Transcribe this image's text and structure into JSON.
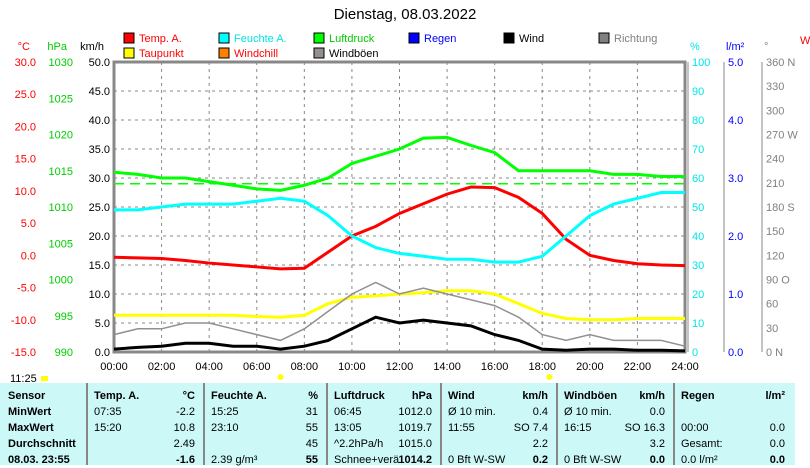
{
  "title": "Dienstag, 08.03.2022",
  "current_time": "11:25",
  "chart_data": {
    "type": "line",
    "title": "Dienstag, 08.03.2022",
    "legend": [
      {
        "label": "Temp. A.",
        "color": "#ff0000",
        "text_color": "#ff0000"
      },
      {
        "label": "Feuchte A.",
        "color": "#00ffff",
        "text_color": "#00e5e5"
      },
      {
        "label": "Luftdruck",
        "color": "#00ff00",
        "text_color": "#00cc00"
      },
      {
        "label": "Regen",
        "color": "#0000ff",
        "text_color": "#0000ff"
      },
      {
        "label": "Wind",
        "color": "#000000",
        "text_color": "#000000"
      },
      {
        "label": "Richtung",
        "color": "#808080",
        "text_color": "#808080"
      },
      {
        "label": "Taupunkt",
        "color": "#ffff00",
        "text_color": "#ff0000"
      },
      {
        "label": "Windchill",
        "color": "#ff8000",
        "text_color": "#ff0000"
      },
      {
        "label": "Windböen",
        "color": "#948e94",
        "text_color": "#000000"
      }
    ],
    "x_ticks": [
      "00:00",
      "02:00",
      "04:00",
      "06:00",
      "08:00",
      "10:00",
      "12:00",
      "14:00",
      "16:00",
      "18:00",
      "20:00",
      "22:00",
      "24:00"
    ],
    "x_hours": [
      0,
      1,
      2,
      3,
      4,
      5,
      6,
      7,
      8,
      9,
      10,
      11,
      12,
      13,
      14,
      15,
      16,
      17,
      18,
      19,
      20,
      21,
      22,
      23,
      24
    ],
    "axes": {
      "temp": {
        "unit": "°C",
        "range": [
          -15,
          30
        ],
        "ticks": [
          "30.0",
          "25.0",
          "20.0",
          "15.0",
          "10.0",
          "5.0",
          "0.0",
          "-5.0",
          "-10.0",
          "-15.0"
        ]
      },
      "pressure": {
        "unit": "hPa",
        "range": [
          990,
          1030
        ],
        "ticks": [
          "1030",
          "1025",
          "1020",
          "1015",
          "1010",
          "1005",
          "1000",
          "995",
          "990"
        ]
      },
      "wind": {
        "unit": "km/h",
        "range": [
          0,
          50
        ],
        "ticks": [
          "50.0",
          "45.0",
          "40.0",
          "35.0",
          "30.0",
          "25.0",
          "20.0",
          "15.0",
          "10.0",
          "5.0",
          "0.0"
        ]
      },
      "humidity": {
        "unit": "%",
        "range": [
          0,
          100
        ],
        "ticks": [
          "100",
          "90",
          "80",
          "70",
          "60",
          "50",
          "40",
          "30",
          "20",
          "10",
          "0"
        ]
      },
      "rain": {
        "unit": "l/m²",
        "range": [
          0,
          5
        ],
        "ticks": [
          "5.0",
          "4.0",
          "3.0",
          "2.0",
          "1.0",
          "0.0"
        ]
      },
      "direction": {
        "unit": "°",
        "range": [
          0,
          360
        ],
        "ticks": [
          "360 N",
          "330",
          "300",
          "270 W",
          "240",
          "210",
          "180 S",
          "150",
          "120",
          "90  O",
          "60",
          "30",
          "0   N"
        ]
      }
    },
    "series": [
      {
        "name": "Temp. A.",
        "axis": "temp",
        "color": "#ff0000",
        "values": [
          -0.3,
          -0.4,
          -0.5,
          -0.8,
          -1.2,
          -1.5,
          -1.8,
          -2.1,
          -2.0,
          0.5,
          3.0,
          4.5,
          6.5,
          8.0,
          9.5,
          10.6,
          10.5,
          9.0,
          6.5,
          2.5,
          0,
          -0.8,
          -1.3,
          -1.5,
          -1.6
        ]
      },
      {
        "name": "Feuchte A.",
        "axis": "humidity",
        "color": "#00ffff",
        "values": [
          49,
          49,
          50,
          51,
          51,
          51,
          52,
          53,
          52,
          47,
          40,
          36,
          34,
          33,
          32,
          32,
          31,
          31,
          33,
          40,
          47,
          51,
          53,
          55,
          55
        ]
      },
      {
        "name": "Luftdruck",
        "axis": "pressure",
        "color": "#00ff00",
        "values": [
          1014.8,
          1014.5,
          1014,
          1014,
          1013.5,
          1013,
          1012.5,
          1012.3,
          1013,
          1014,
          1016,
          1017,
          1018,
          1019.5,
          1019.6,
          1018.5,
          1017.5,
          1015,
          1015,
          1015,
          1015,
          1014.5,
          1014.5,
          1014.2,
          1014.2
        ]
      },
      {
        "name": "Taupunkt",
        "axis": "temp",
        "color": "#ffff00",
        "values": [
          -9.3,
          -9.3,
          -9.3,
          -9.3,
          -9.3,
          -9.3,
          -9.5,
          -9.6,
          -9.3,
          -7.5,
          -6.5,
          -6.3,
          -6,
          -5.8,
          -5.5,
          -5.5,
          -6,
          -7.5,
          -9,
          -9.8,
          -10,
          -10,
          -9.8,
          -9.8,
          -9.8
        ]
      },
      {
        "name": "Windböen",
        "axis": "wind",
        "color": "#948e94",
        "values": [
          3,
          4,
          4,
          5,
          5,
          4,
          3,
          2,
          4,
          7,
          10,
          12,
          10,
          11,
          10,
          9,
          8,
          6,
          3,
          2,
          3,
          2,
          2,
          2,
          1
        ]
      },
      {
        "name": "Wind",
        "axis": "wind",
        "color": "#000000",
        "values": [
          0.5,
          0.8,
          1,
          1.5,
          1.5,
          1,
          1,
          0.5,
          1,
          2,
          4,
          6,
          5,
          5.5,
          5,
          4.5,
          3,
          2,
          0.5,
          0.3,
          0.5,
          0.5,
          0.3,
          0.3,
          0.2
        ]
      }
    ],
    "pressure_reference": 1013.2,
    "sunrise_hour": 7.0,
    "sunset_hour": 18.3,
    "right_edge_label": "W"
  },
  "table": {
    "headers": [
      "Sensor",
      "Temp. A.",
      "°C",
      "Feuchte A.",
      "%",
      "Luftdruck",
      "hPa",
      "Wind",
      "km/h",
      "Windböen",
      "km/h",
      "Regen",
      "l/m²"
    ],
    "rows": [
      {
        "label": "MinWert",
        "c": [
          "07:35",
          "-2.2",
          "15:25",
          "31",
          "06:45",
          "1012.0",
          "Ø 10 min.",
          "0.4",
          "Ø 10 min.",
          "0.0",
          "",
          ""
        ]
      },
      {
        "label": "MaxWert",
        "c": [
          "15:20",
          "10.8",
          "23:10",
          "55",
          "13:05",
          "1019.7",
          "11:55",
          "SO 7.4",
          "16:15",
          "SO 16.3",
          "00:00",
          "0.0"
        ]
      },
      {
        "label": "Durchschnitt",
        "c": [
          "",
          "2.49",
          "",
          "45",
          "^2.2hPa/h",
          "1015.0",
          "",
          "2.2",
          "",
          "3.2",
          "Gesamt:",
          "0.0"
        ]
      },
      {
        "label": "08.03. 23:55",
        "c": [
          "",
          "-1.6",
          "2.39 g/m³",
          "55",
          "Schnee+verä",
          "1014.2",
          "0 Bft W-SW",
          "0.2",
          "0 Bft W-SW",
          "0.0",
          "0.0 l/m²",
          "0.0"
        ]
      }
    ]
  }
}
